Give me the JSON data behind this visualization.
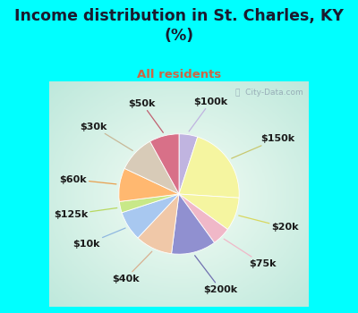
{
  "title": "Income distribution in St. Charles, KY\n(%)",
  "subtitle": "All residents",
  "labels": [
    "$100k",
    "$150k",
    "$20k",
    "$75k",
    "$200k",
    "$40k",
    "$10k",
    "$125k",
    "$60k",
    "$30k",
    "$50k"
  ],
  "sizes": [
    5,
    21,
    9,
    5,
    12,
    10,
    8,
    3,
    9,
    10,
    8
  ],
  "colors": [
    "#c0b4e0",
    "#f5f5a0",
    "#f5f5a0",
    "#f0b8c8",
    "#9090d0",
    "#f0c8a8",
    "#a8c8f0",
    "#c8e888",
    "#ffb870",
    "#d8cbb8",
    "#d87088"
  ],
  "bg_color": "#00ffff",
  "chart_bg_center": "#f5faf5",
  "chart_bg_edge": "#c0e8d8",
  "title_color": "#1a1a2e",
  "subtitle_color": "#cc6644",
  "label_color": "#1a1a1a",
  "watermark": "ⓘ  City-Data.com",
  "label_fontsize": 8,
  "title_fontsize": 12.5
}
